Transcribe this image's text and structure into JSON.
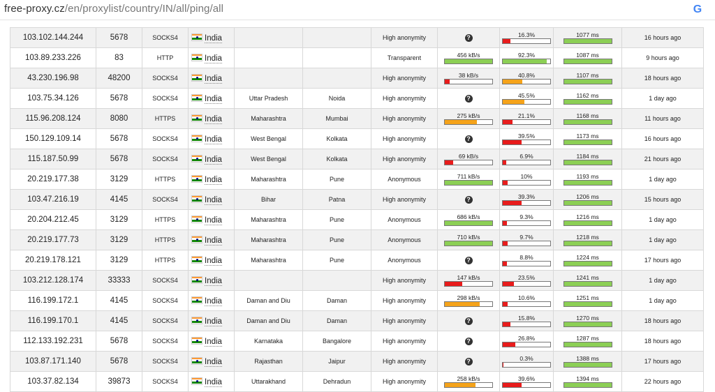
{
  "browser": {
    "url_host": "free-proxy.cz",
    "url_path": "/en/proxylist/country/IN/all/ping/all"
  },
  "colors": {
    "green": "#8ccf55",
    "orange": "#f5a31a",
    "red": "#e81c1c"
  },
  "rows": [
    {
      "ip": "103.102.144.244",
      "port": "5678",
      "protocol": "SOCKS4",
      "country": "India",
      "region": "",
      "city": "",
      "anonymity": "High anonymity",
      "speed": null,
      "uptime": "16.3%",
      "uptime_pct": 16.3,
      "response": "1077 ms",
      "checked": "16 hours ago"
    },
    {
      "ip": "103.89.233.226",
      "port": "83",
      "protocol": "HTTP",
      "country": "India",
      "region": "",
      "city": "",
      "anonymity": "Transparent",
      "speed": "456 kB/s",
      "speed_pct": 100,
      "uptime": "92.3%",
      "uptime_pct": 92.3,
      "response": "1087 ms",
      "checked": "9 hours ago"
    },
    {
      "ip": "43.230.196.98",
      "port": "48200",
      "protocol": "SOCKS4",
      "country": "India",
      "region": "",
      "city": "",
      "anonymity": "High anonymity",
      "speed": "38 kB/s",
      "speed_pct": 10,
      "uptime": "40.8%",
      "uptime_pct": 40.8,
      "response": "1107 ms",
      "checked": "18 hours ago"
    },
    {
      "ip": "103.75.34.126",
      "port": "5678",
      "protocol": "SOCKS4",
      "country": "India",
      "region": "Uttar Pradesh",
      "city": "Noida",
      "anonymity": "High anonymity",
      "speed": null,
      "uptime": "45.5%",
      "uptime_pct": 45.5,
      "response": "1162 ms",
      "checked": "1 day ago"
    },
    {
      "ip": "115.96.208.124",
      "port": "8080",
      "protocol": "HTTPS",
      "country": "India",
      "region": "Maharashtra",
      "city": "Mumbai",
      "anonymity": "High anonymity",
      "speed": "275 kB/s",
      "speed_pct": 68,
      "uptime": "21.1%",
      "uptime_pct": 21.1,
      "response": "1168 ms",
      "checked": "11 hours ago"
    },
    {
      "ip": "150.129.109.14",
      "port": "5678",
      "protocol": "SOCKS4",
      "country": "India",
      "region": "West Bengal",
      "city": "Kolkata",
      "anonymity": "High anonymity",
      "speed": null,
      "uptime": "39.5%",
      "uptime_pct": 39.5,
      "response": "1173 ms",
      "checked": "16 hours ago"
    },
    {
      "ip": "115.187.50.99",
      "port": "5678",
      "protocol": "SOCKS4",
      "country": "India",
      "region": "West Bengal",
      "city": "Kolkata",
      "anonymity": "High anonymity",
      "speed": "69 kB/s",
      "speed_pct": 17,
      "uptime": "6.9%",
      "uptime_pct": 6.9,
      "response": "1184 ms",
      "checked": "21 hours ago"
    },
    {
      "ip": "20.219.177.38",
      "port": "3129",
      "protocol": "HTTPS",
      "country": "India",
      "region": "Maharashtra",
      "city": "Pune",
      "anonymity": "Anonymous",
      "speed": "711 kB/s",
      "speed_pct": 100,
      "uptime": "10%",
      "uptime_pct": 10,
      "response": "1193 ms",
      "checked": "1 day ago"
    },
    {
      "ip": "103.47.216.19",
      "port": "4145",
      "protocol": "SOCKS4",
      "country": "India",
      "region": "Bihar",
      "city": "Patna",
      "anonymity": "High anonymity",
      "speed": null,
      "uptime": "39.3%",
      "uptime_pct": 39.3,
      "response": "1206 ms",
      "checked": "15 hours ago"
    },
    {
      "ip": "20.204.212.45",
      "port": "3129",
      "protocol": "HTTPS",
      "country": "India",
      "region": "Maharashtra",
      "city": "Pune",
      "anonymity": "Anonymous",
      "speed": "686 kB/s",
      "speed_pct": 100,
      "uptime": "9.3%",
      "uptime_pct": 9.3,
      "response": "1216 ms",
      "checked": "1 day ago"
    },
    {
      "ip": "20.219.177.73",
      "port": "3129",
      "protocol": "HTTPS",
      "country": "India",
      "region": "Maharashtra",
      "city": "Pune",
      "anonymity": "Anonymous",
      "speed": "710 kB/s",
      "speed_pct": 100,
      "uptime": "9.7%",
      "uptime_pct": 9.7,
      "response": "1218 ms",
      "checked": "1 day ago"
    },
    {
      "ip": "20.219.178.121",
      "port": "3129",
      "protocol": "HTTPS",
      "country": "India",
      "region": "Maharashtra",
      "city": "Pune",
      "anonymity": "Anonymous",
      "speed": null,
      "uptime": "8.8%",
      "uptime_pct": 8.8,
      "response": "1224 ms",
      "checked": "17 hours ago"
    },
    {
      "ip": "103.212.128.174",
      "port": "33333",
      "protocol": "SOCKS4",
      "country": "India",
      "region": "",
      "city": "",
      "anonymity": "High anonymity",
      "speed": "147 kB/s",
      "speed_pct": 37,
      "uptime": "23.5%",
      "uptime_pct": 23.5,
      "response": "1241 ms",
      "checked": "1 day ago"
    },
    {
      "ip": "116.199.172.1",
      "port": "4145",
      "protocol": "SOCKS4",
      "country": "India",
      "region": "Daman and Diu",
      "city": "Daman",
      "anonymity": "High anonymity",
      "speed": "298 kB/s",
      "speed_pct": 74,
      "uptime": "10.6%",
      "uptime_pct": 10.6,
      "response": "1251 ms",
      "checked": "1 day ago"
    },
    {
      "ip": "116.199.170.1",
      "port": "4145",
      "protocol": "SOCKS4",
      "country": "India",
      "region": "Daman and Diu",
      "city": "Daman",
      "anonymity": "High anonymity",
      "speed": null,
      "uptime": "15.8%",
      "uptime_pct": 15.8,
      "response": "1270 ms",
      "checked": "18 hours ago"
    },
    {
      "ip": "112.133.192.231",
      "port": "5678",
      "protocol": "SOCKS4",
      "country": "India",
      "region": "Karnataka",
      "city": "Bangalore",
      "anonymity": "High anonymity",
      "speed": null,
      "uptime": "26.8%",
      "uptime_pct": 26.8,
      "response": "1287 ms",
      "checked": "18 hours ago"
    },
    {
      "ip": "103.87.171.140",
      "port": "5678",
      "protocol": "SOCKS4",
      "country": "India",
      "region": "Rajasthan",
      "city": "Jaipur",
      "anonymity": "High anonymity",
      "speed": null,
      "uptime": "0.3%",
      "uptime_pct": 0.3,
      "response": "1388 ms",
      "checked": "17 hours ago"
    },
    {
      "ip": "103.37.82.134",
      "port": "39873",
      "protocol": "SOCKS4",
      "country": "India",
      "region": "Uttarakhand",
      "city": "Dehradun",
      "anonymity": "High anonymity",
      "speed": "258 kB/s",
      "speed_pct": 64,
      "uptime": "39.6%",
      "uptime_pct": 39.6,
      "response": "1394 ms",
      "checked": "22 hours ago"
    }
  ]
}
